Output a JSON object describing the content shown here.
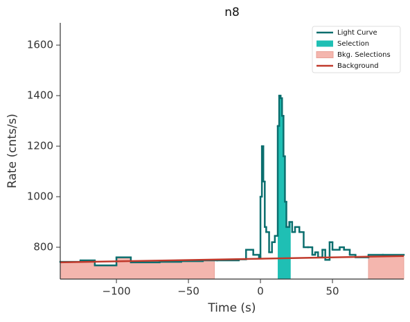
{
  "chart_data": {
    "type": "step",
    "title": "n8",
    "xlabel": "Time (s)",
    "ylabel": "Rate (cnts/s)",
    "xlim": [
      -139,
      99.5
    ],
    "ylim": [
      674,
      1688
    ],
    "xticks": [
      {
        "value": -100,
        "label": "−100"
      },
      {
        "value": -50,
        "label": "−50"
      },
      0,
      50
    ],
    "yticks": [
      800,
      1000,
      1200,
      1400,
      1600
    ],
    "legend": "upper right",
    "series": [
      {
        "name": "Light Curve",
        "color": "#0b6e6e",
        "bins": [
          -139,
          -125,
          -115,
          -100,
          -90,
          -70,
          -55,
          -40,
          -30,
          -15,
          -10,
          -5,
          -1,
          0,
          1,
          2,
          3,
          4,
          6,
          8,
          10,
          12,
          13,
          14,
          15,
          16,
          17,
          18,
          20,
          22,
          24,
          27,
          30,
          33,
          36,
          38,
          40,
          43,
          45,
          48,
          50,
          55,
          58,
          62,
          66,
          75,
          85,
          99.5
        ],
        "values": [
          742,
          748,
          728,
          760,
          740,
          742,
          745,
          748,
          748,
          752,
          790,
          770,
          760,
          1000,
          1200,
          1060,
          880,
          860,
          780,
          820,
          845,
          1280,
          1400,
          1390,
          1320,
          1160,
          980,
          880,
          900,
          860,
          880,
          860,
          800,
          800,
          770,
          780,
          760,
          790,
          750,
          820,
          790,
          800,
          790,
          770,
          760,
          770,
          770
        ]
      }
    ],
    "selection": {
      "name": "Selection",
      "color": "#1fbfb4",
      "range": [
        12,
        21
      ]
    },
    "bkg_selections": {
      "name": "Bkg. Selections",
      "color": "#f4b6ae",
      "ranges": [
        [
          -139,
          -32
        ],
        [
          75,
          99.5
        ]
      ]
    },
    "background": {
      "name": "Background",
      "color": "#c0392b",
      "x": [
        -139,
        99.5
      ],
      "values": [
        740,
        765
      ]
    }
  }
}
